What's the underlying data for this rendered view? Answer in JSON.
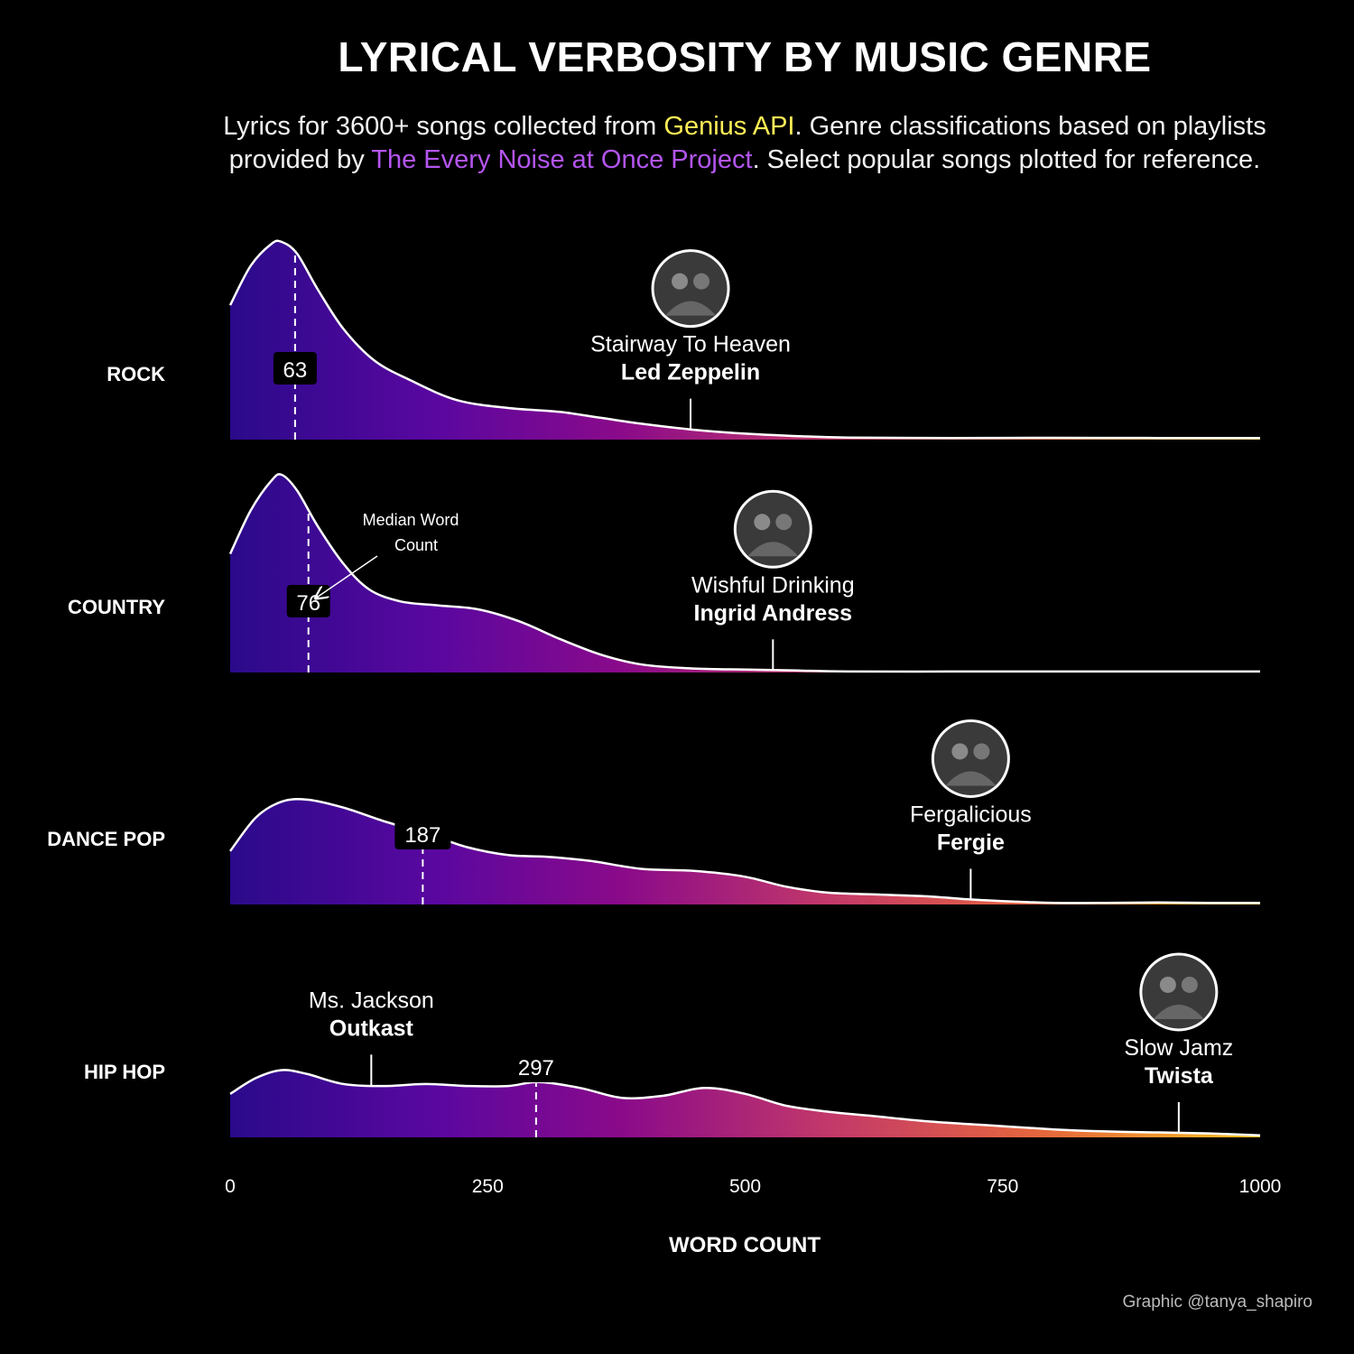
{
  "title": "LYRICAL VERBOSITY BY MUSIC GENRE",
  "subtitle": {
    "part1": "Lyrics for 3600+ songs collected from ",
    "highlight1": "Genius API",
    "part2": ". Genre classifications based on playlists provided by ",
    "highlight2": "The Every Noise at Once Project",
    "part3": ". Select popular songs plotted for reference."
  },
  "credit": "Graphic @tanya_shapiro",
  "colors": {
    "background": "#000000",
    "gradient": [
      "#2a0a8a",
      "#5a07a0",
      "#8a0a8a",
      "#c2386a",
      "#e86a3a",
      "#f8c020"
    ],
    "highlight_yellow": "#ffee55",
    "highlight_purple": "#b455f0"
  },
  "chart_data": {
    "type": "area",
    "subtype": "ridgeline density",
    "xlabel": "WORD COUNT",
    "xlim": [
      0,
      1000
    ],
    "xticks": [
      0,
      250,
      500,
      750,
      1000
    ],
    "xtick_labels": [
      "0",
      "250",
      "500",
      "750",
      "1000"
    ],
    "annotation_note": "Median Word Count",
    "series": [
      {
        "name": "ROCK",
        "median": 63,
        "median_label": "63",
        "density": [
          [
            0,
            0.68
          ],
          [
            20,
            0.88
          ],
          [
            40,
            0.99
          ],
          [
            50,
            1.0
          ],
          [
            65,
            0.94
          ],
          [
            85,
            0.76
          ],
          [
            110,
            0.56
          ],
          [
            140,
            0.4
          ],
          [
            175,
            0.3
          ],
          [
            220,
            0.2
          ],
          [
            270,
            0.16
          ],
          [
            320,
            0.14
          ],
          [
            360,
            0.11
          ],
          [
            400,
            0.08
          ],
          [
            450,
            0.05
          ],
          [
            500,
            0.03
          ],
          [
            550,
            0.018
          ],
          [
            600,
            0.01
          ],
          [
            700,
            0.008
          ],
          [
            800,
            0.009
          ],
          [
            900,
            0.008
          ],
          [
            1000,
            0.008
          ]
        ],
        "songs": [
          {
            "title": "Stairway To Heaven",
            "artist": "Led Zeppelin",
            "word_count": 447,
            "photo": "band-photo"
          }
        ]
      },
      {
        "name": "COUNTRY",
        "median": 76,
        "median_label": "76",
        "density": [
          [
            0,
            0.6
          ],
          [
            20,
            0.82
          ],
          [
            40,
            0.97
          ],
          [
            50,
            1.0
          ],
          [
            65,
            0.92
          ],
          [
            85,
            0.74
          ],
          [
            110,
            0.55
          ],
          [
            135,
            0.42
          ],
          [
            165,
            0.36
          ],
          [
            200,
            0.34
          ],
          [
            240,
            0.32
          ],
          [
            280,
            0.26
          ],
          [
            320,
            0.17
          ],
          [
            360,
            0.09
          ],
          [
            400,
            0.04
          ],
          [
            450,
            0.02
          ],
          [
            500,
            0.015
          ],
          [
            550,
            0.01
          ],
          [
            600,
            0.005
          ],
          [
            700,
            0.005
          ],
          [
            800,
            0.005
          ],
          [
            900,
            0.005
          ],
          [
            1000,
            0.005
          ]
        ],
        "songs": [
          {
            "title": "Wishful Drinking",
            "artist": "Ingrid Andress",
            "word_count": 527,
            "photo": "video-still"
          }
        ]
      },
      {
        "name": "DANCE POP",
        "median": 187,
        "median_label": "187",
        "density": [
          [
            0,
            0.27
          ],
          [
            25,
            0.44
          ],
          [
            50,
            0.52
          ],
          [
            75,
            0.53
          ],
          [
            110,
            0.49
          ],
          [
            150,
            0.42
          ],
          [
            190,
            0.36
          ],
          [
            230,
            0.29
          ],
          [
            270,
            0.25
          ],
          [
            310,
            0.24
          ],
          [
            350,
            0.22
          ],
          [
            400,
            0.18
          ],
          [
            450,
            0.17
          ],
          [
            500,
            0.14
          ],
          [
            540,
            0.09
          ],
          [
            580,
            0.06
          ],
          [
            630,
            0.05
          ],
          [
            680,
            0.04
          ],
          [
            720,
            0.025
          ],
          [
            760,
            0.015
          ],
          [
            800,
            0.008
          ],
          [
            850,
            0.008
          ],
          [
            900,
            0.01
          ],
          [
            950,
            0.008
          ],
          [
            1000,
            0.008
          ]
        ],
        "songs": [
          {
            "title": "Fergalicious",
            "artist": "Fergie",
            "word_count": 719,
            "photo": "artist-portrait"
          }
        ]
      },
      {
        "name": "HIP HOP",
        "median": 297,
        "median_label": "297",
        "density": [
          [
            0,
            0.22
          ],
          [
            25,
            0.3
          ],
          [
            50,
            0.34
          ],
          [
            75,
            0.32
          ],
          [
            110,
            0.27
          ],
          [
            150,
            0.26
          ],
          [
            190,
            0.27
          ],
          [
            230,
            0.26
          ],
          [
            270,
            0.26
          ],
          [
            300,
            0.28
          ],
          [
            340,
            0.25
          ],
          [
            380,
            0.2
          ],
          [
            420,
            0.21
          ],
          [
            460,
            0.25
          ],
          [
            500,
            0.22
          ],
          [
            540,
            0.16
          ],
          [
            580,
            0.13
          ],
          [
            620,
            0.11
          ],
          [
            680,
            0.08
          ],
          [
            740,
            0.06
          ],
          [
            800,
            0.04
          ],
          [
            850,
            0.03
          ],
          [
            900,
            0.025
          ],
          [
            950,
            0.02
          ],
          [
            1000,
            0.01
          ]
        ],
        "songs": [
          {
            "title": "Ms. Jackson",
            "artist": "Outkast",
            "word_count": 137
          },
          {
            "title": "Slow Jamz",
            "artist": "Twista",
            "word_count": 921,
            "photo": "artist-portrait"
          }
        ]
      }
    ]
  }
}
